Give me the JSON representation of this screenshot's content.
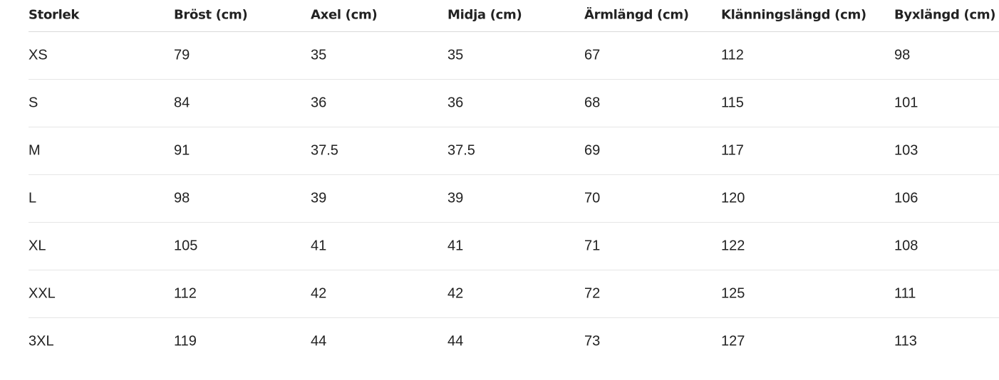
{
  "table": {
    "headers": [
      "Storlek",
      "Bröst (cm)",
      "Axel (cm)",
      "Midja (cm)",
      "Ärmlängd (cm)",
      "Klänningslängd (cm)",
      "Byxlängd (cm)"
    ],
    "rows": [
      [
        "XS",
        "79",
        "35",
        "35",
        "67",
        "112",
        "98"
      ],
      [
        "S",
        "84",
        "36",
        "36",
        "68",
        "115",
        "101"
      ],
      [
        "M",
        "91",
        "37.5",
        "37.5",
        "69",
        "117",
        "103"
      ],
      [
        "L",
        "98",
        "39",
        "39",
        "70",
        "120",
        "106"
      ],
      [
        "XL",
        "105",
        "41",
        "41",
        "71",
        "122",
        "108"
      ],
      [
        "XXL",
        "112",
        "42",
        "42",
        "72",
        "125",
        "111"
      ],
      [
        "3XL",
        "119",
        "44",
        "44",
        "73",
        "127",
        "113"
      ]
    ]
  }
}
